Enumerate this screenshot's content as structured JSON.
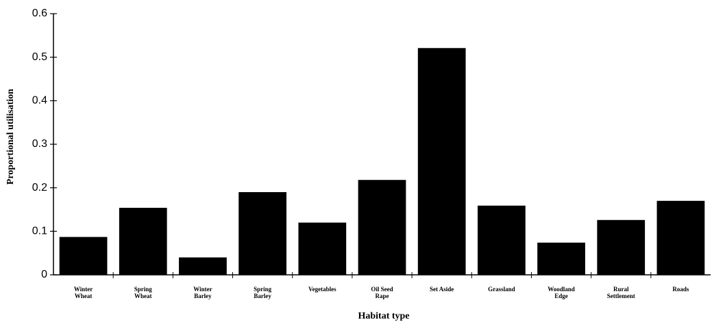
{
  "chart_data": {
    "type": "bar",
    "x_label": "Habitat type",
    "y_label": "Proportional utilisation",
    "categories": [
      "Winter Wheat",
      "Spring Wheat",
      "Winter Barley",
      "Spring Barley",
      "Vegetables",
      "Oil Seed Rape",
      "Set Aside",
      "Grassland",
      "Woodland Edge",
      "Rural Settlement",
      "Roads"
    ],
    "values": [
      0.087,
      0.154,
      0.04,
      0.19,
      0.12,
      0.218,
      0.521,
      0.159,
      0.074,
      0.126,
      0.17
    ],
    "color": "#000000",
    "ylim": [
      0,
      0.6
    ],
    "yticks": [
      0,
      0.1,
      0.2,
      0.3,
      0.4,
      0.5,
      0.6
    ],
    "grid": false
  }
}
